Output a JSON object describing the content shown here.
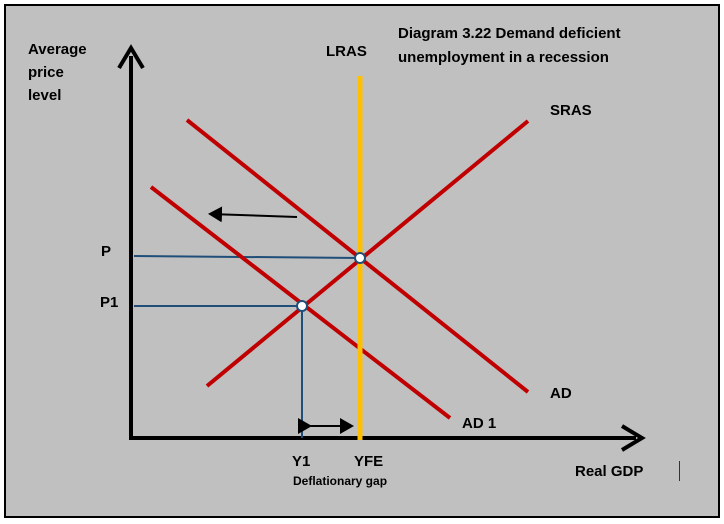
{
  "title": {
    "line1": "Diagram 3.22 Demand deficient",
    "line2": "unemployment in a recession"
  },
  "axes": {
    "y_label": [
      "Average",
      "price",
      "level"
    ],
    "x_label": "Real GDP"
  },
  "curves": {
    "lras": "LRAS",
    "sras": "SRAS",
    "ad": "AD",
    "ad1": "AD 1"
  },
  "price_levels": {
    "p": "P",
    "p1": "P1"
  },
  "output_levels": {
    "y1": "Y1",
    "yfe": "YFE"
  },
  "gap_label": "Deflationary gap",
  "colors": {
    "background": "#c0c0c0",
    "curve": "#c00000",
    "lras": "#ffc000",
    "guide": "#1f4e79",
    "axis": "#000000"
  }
}
